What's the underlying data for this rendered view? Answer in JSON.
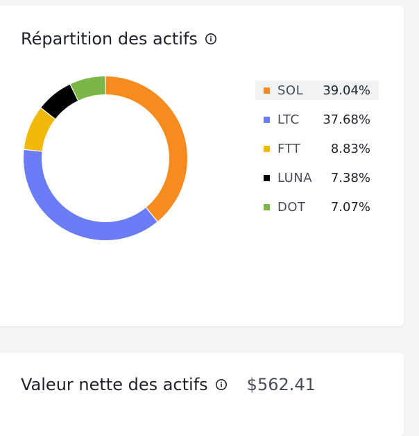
{
  "allocation": {
    "title": "Répartition des actifs"
  },
  "chart_data": {
    "type": "pie",
    "categories": [
      "SOL",
      "LTC",
      "FTT",
      "LUNA",
      "DOT"
    ],
    "values": [
      39.04,
      37.68,
      8.83,
      7.38,
      7.07
    ],
    "labels": [
      "39.04%",
      "37.68%",
      "8.83%",
      "7.38%",
      "7.07%"
    ],
    "colors": [
      "#f68b1f",
      "#6a7cf6",
      "#f0b90b",
      "#000000",
      "#7ab648"
    ],
    "donut": true,
    "legend": "right",
    "highlighted": "SOL"
  },
  "networth": {
    "title": "Valeur nette des actifs",
    "value": "$562.41"
  },
  "icons": {
    "info": "info-circle-icon"
  }
}
